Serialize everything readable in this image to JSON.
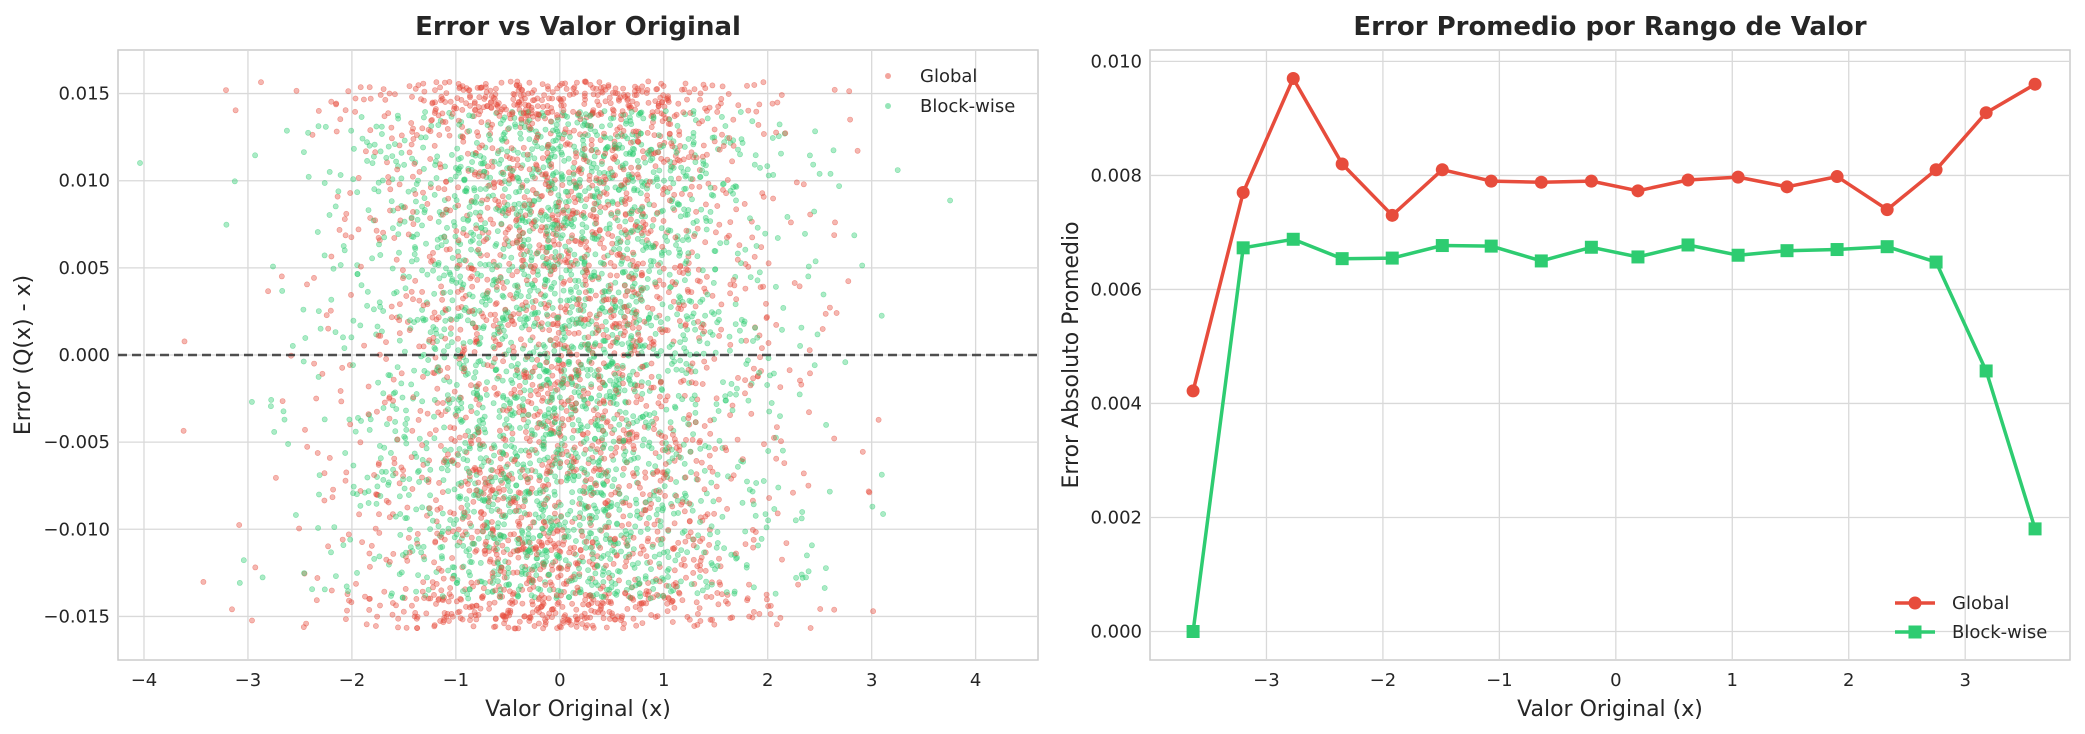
{
  "chart_data": [
    {
      "type": "scatter",
      "title": "Error vs Valor Original",
      "xlabel": "Valor Original (x)",
      "ylabel": "Error (Q(x) - x)",
      "xlim": [
        -4.25,
        4.6
      ],
      "ylim": [
        -0.0175,
        0.0175
      ],
      "xticks": [
        -4,
        -3,
        -2,
        -1,
        0,
        1,
        2,
        3,
        4
      ],
      "xtick_labels": [
        "−4",
        "−3",
        "−2",
        "−1",
        "0",
        "1",
        "2",
        "3",
        "4"
      ],
      "yticks": [
        -0.015,
        -0.01,
        -0.005,
        0.0,
        0.005,
        0.01,
        0.015
      ],
      "ytick_labels": [
        "−0.015",
        "−0.010",
        "−0.005",
        "0.000",
        "0.005",
        "0.010",
        "0.015"
      ],
      "grid": true,
      "legend_position": "top-right",
      "reference_line": {
        "y": 0,
        "style": "dashed",
        "color": "#333333"
      },
      "distribution": {
        "x": "approximately standard normal, mean 0, sd 1, most points in [-2, 2]",
        "global_error_range": [
          -0.0157,
          0.0157
        ],
        "blockwise_error_range": [
          -0.014,
          0.014
        ],
        "note": "thousands of overlapping points; values shown are a representative reconstruction"
      },
      "series": [
        {
          "name": "Global",
          "color": "#e74c3c",
          "marker": "circle",
          "alpha": 0.4,
          "count": 2600
        },
        {
          "name": "Block-wise",
          "color": "#2ecc71",
          "marker": "circle",
          "alpha": 0.4,
          "count": 2600
        }
      ]
    },
    {
      "type": "line",
      "title": "Error Promedio por Rango de Valor",
      "xlabel": "Valor Original (x)",
      "ylabel": "Error Absoluto Promedio",
      "xlim": [
        -4.0,
        3.9
      ],
      "ylim": [
        -0.0005,
        0.0102
      ],
      "xticks": [
        -3,
        -2,
        -1,
        0,
        1,
        2,
        3
      ],
      "xtick_labels": [
        "−3",
        "−2",
        "−1",
        "0",
        "1",
        "2",
        "3"
      ],
      "yticks": [
        0.0,
        0.002,
        0.004,
        0.006,
        0.008,
        0.01
      ],
      "ytick_labels": [
        "0.000",
        "0.002",
        "0.004",
        "0.006",
        "0.008",
        "0.010"
      ],
      "grid": true,
      "legend_position": "bottom-right",
      "x": [
        -3.63,
        -3.2,
        -2.77,
        -2.35,
        -1.92,
        -1.49,
        -1.07,
        -0.64,
        -0.21,
        0.19,
        0.62,
        1.05,
        1.47,
        1.9,
        2.33,
        2.75,
        3.18,
        3.6
      ],
      "series": [
        {
          "name": "Global",
          "color": "#e74c3c",
          "marker": "circle",
          "values": [
            0.00422,
            0.0077,
            0.0097,
            0.0082,
            0.0073,
            0.0081,
            0.0079,
            0.00788,
            0.0079,
            0.00773,
            0.00792,
            0.00797,
            0.0078,
            0.00798,
            0.0074,
            0.0081,
            0.0091,
            0.0096
          ]
        },
        {
          "name": "Block-wise",
          "color": "#2ecc71",
          "marker": "square",
          "values": [
            0.0,
            0.00673,
            0.00688,
            0.00654,
            0.00655,
            0.00677,
            0.00676,
            0.0065,
            0.00674,
            0.00657,
            0.00678,
            0.0066,
            0.00668,
            0.0067,
            0.00675,
            0.00648,
            0.00457,
            0.0018
          ]
        }
      ]
    }
  ]
}
